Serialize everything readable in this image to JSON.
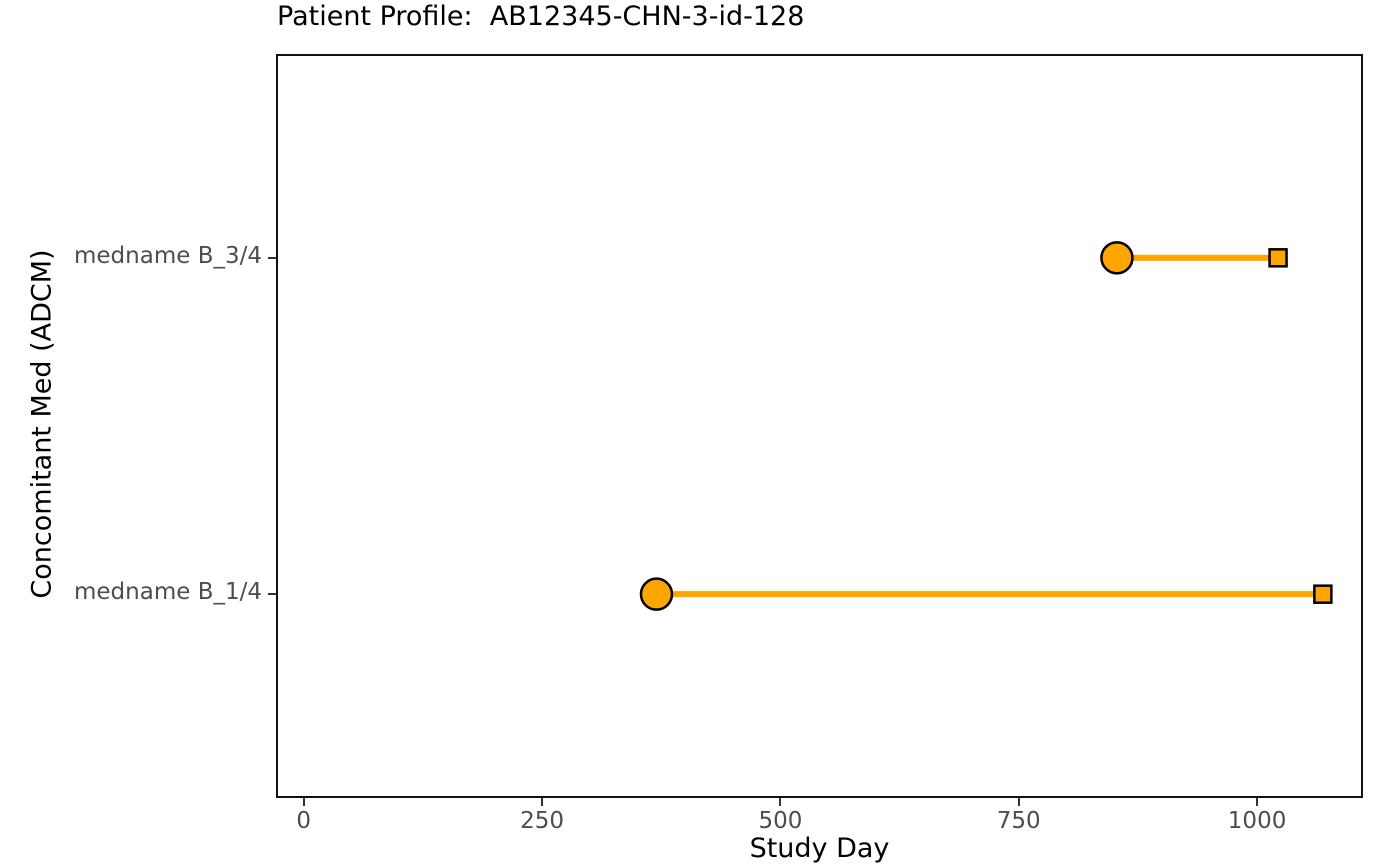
{
  "chart_data": {
    "type": "dumbbell",
    "title": "Patient Profile:  AB12345-CHN-3-id-128",
    "xlabel": "Study Day",
    "ylabel": "Concomitant Med (ADCM)",
    "x_ticks": [
      0,
      250,
      500,
      750,
      1000
    ],
    "xlim": [
      -27,
      1109
    ],
    "grid": false,
    "legend": "none",
    "panel_background": "#ffffff",
    "panel_border_color": "#111111",
    "accent_color": "#FFA500",
    "marker_stroke_color": "#000000",
    "tick_label_color": "#4d4d4d",
    "rows": [
      {
        "label": "medname B_3/4",
        "start_day": 853,
        "end_day": 1022,
        "start_marker": "circle",
        "end_marker": "square"
      },
      {
        "label": "medname B_1/4",
        "start_day": 370,
        "end_day": 1069,
        "start_marker": "circle",
        "end_marker": "square"
      }
    ]
  }
}
